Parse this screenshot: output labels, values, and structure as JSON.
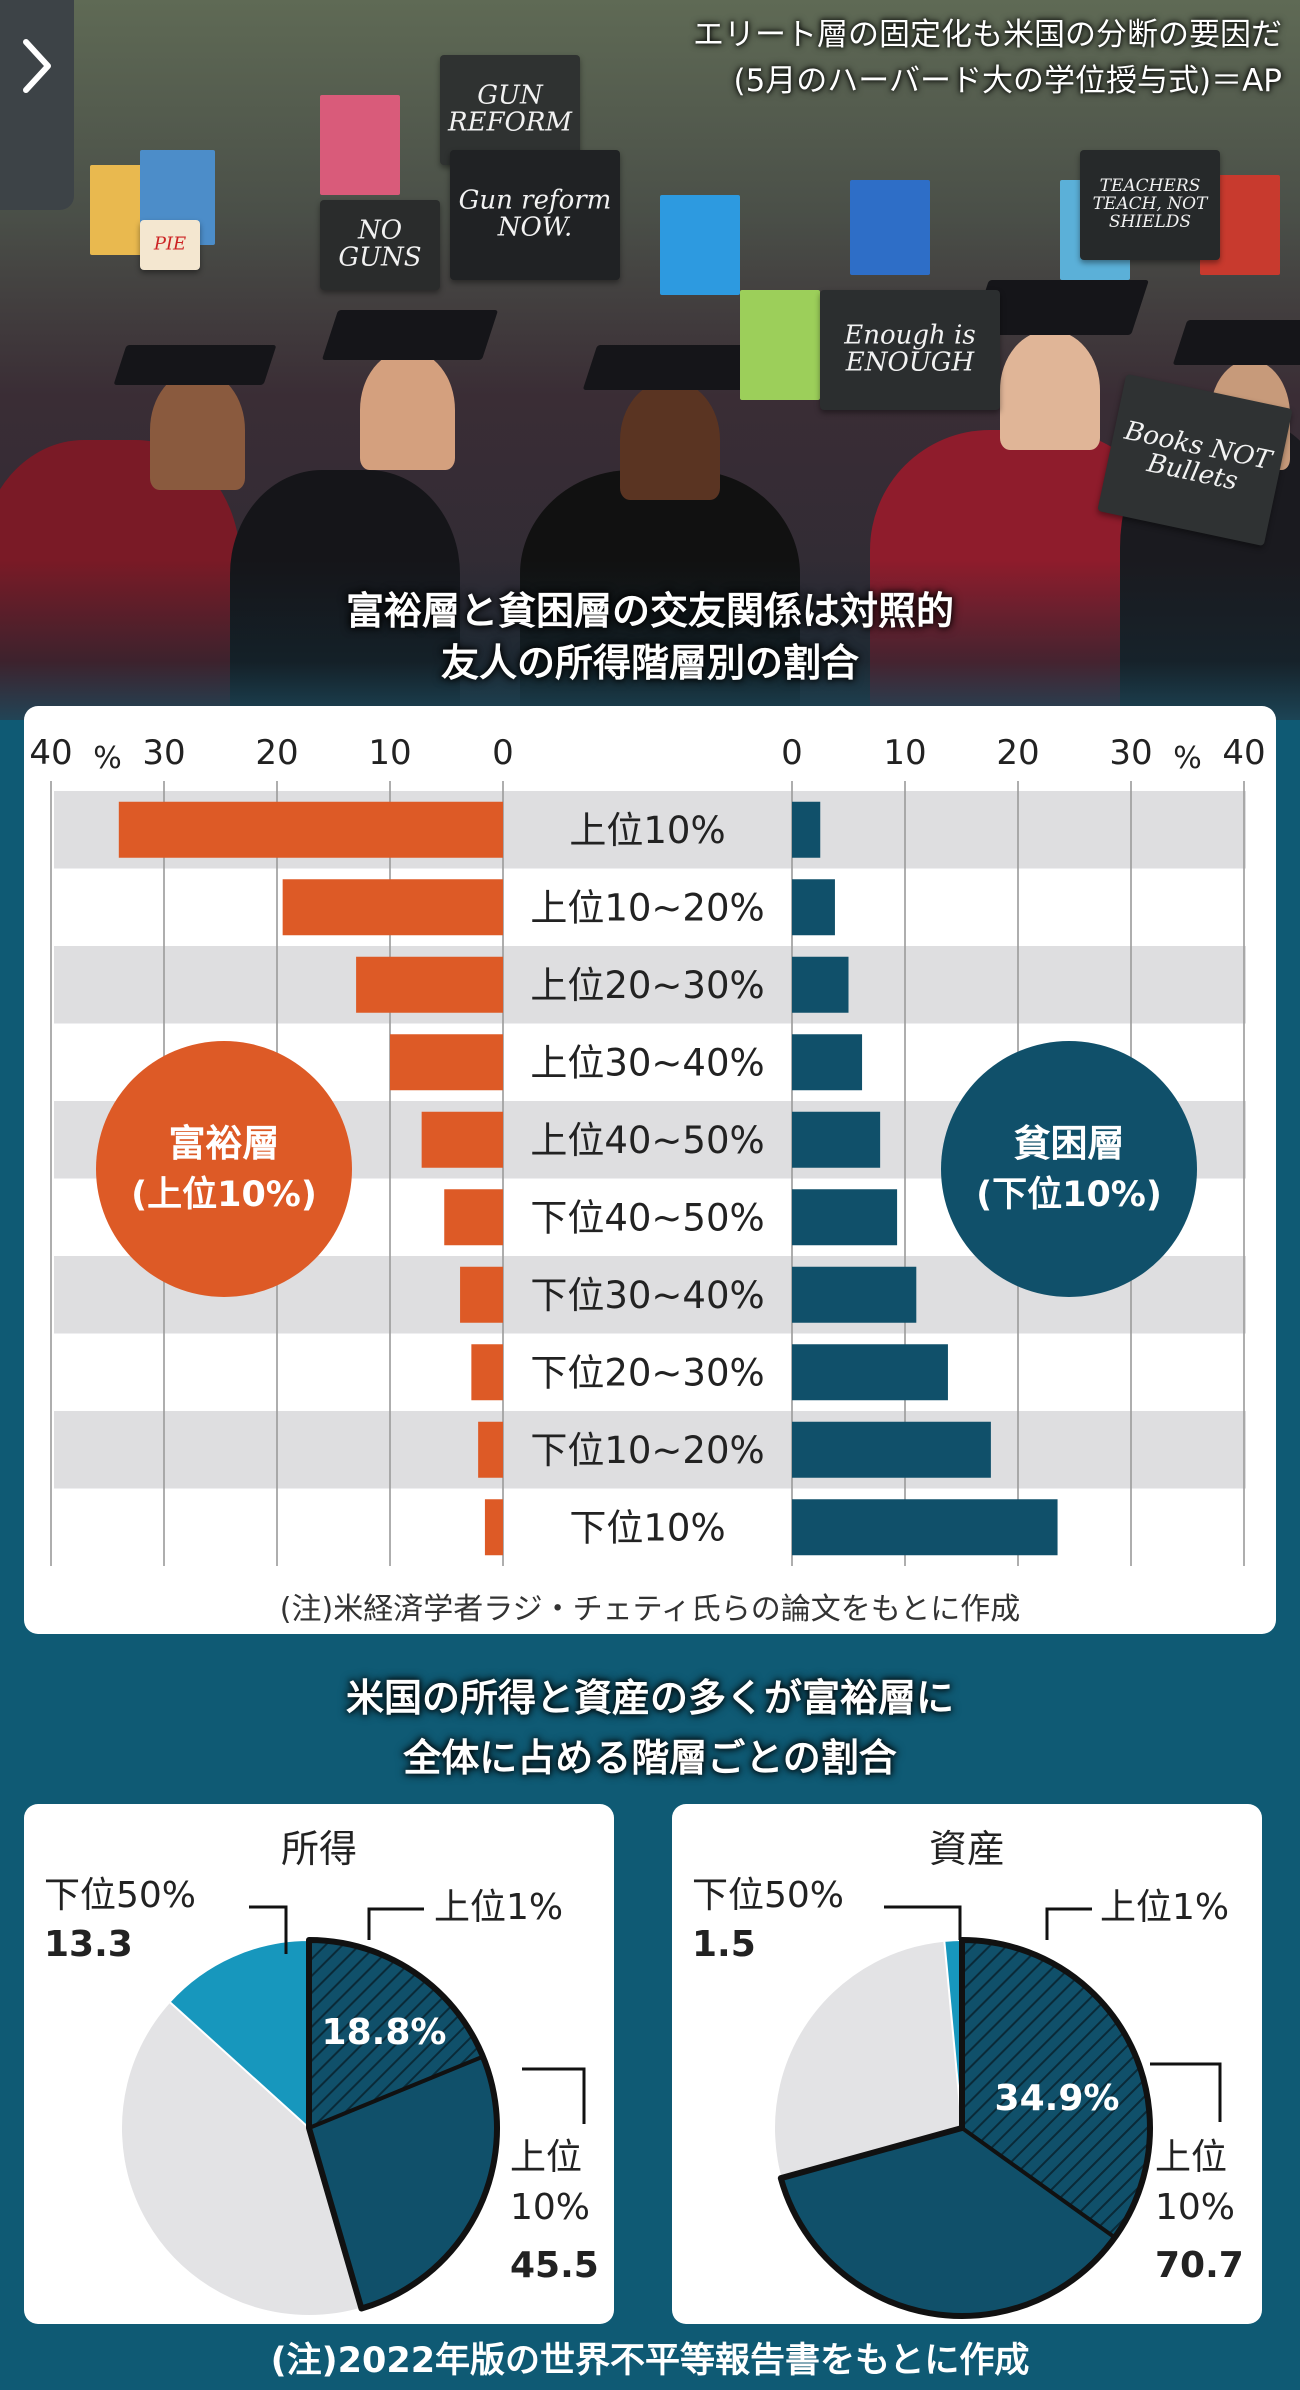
{
  "photo": {
    "caption_line1": "エリート層の固定化も米国の分断の要因だ",
    "caption_line2": "(5月のハーバード大の学位授与式)＝AP",
    "sign_texts": [
      "GUN REFORM",
      "Gun reform NOW.",
      "NO GUNS",
      "Enough is ENOUGH",
      "Books NOT Bullets",
      "TEACHERS TEACH, NOT SHIELDS",
      "PIE"
    ]
  },
  "next_button": {
    "icon": "chevron-right-icon"
  },
  "chart_data": [
    {
      "type": "bar",
      "title": "富裕層と貧困層の交友関係は対照的",
      "subtitle": "友人の所得階層別の割合",
      "categories": [
        "上位10%",
        "上位10~20%",
        "上位20~30%",
        "上位30~40%",
        "上位40~50%",
        "下位40~50%",
        "下位30~40%",
        "下位20~30%",
        "下位10~20%",
        "下位10%"
      ],
      "series": [
        {
          "name": "富裕層\n(上位10%)",
          "label_line1": "富裕層",
          "label_line2": "(上位10%)",
          "color": "#dd5a26",
          "values": [
            34,
            19.5,
            13,
            10,
            7.2,
            5.2,
            3.8,
            2.8,
            2.2,
            1.6
          ]
        },
        {
          "name": "貧困層\n(下位10%)",
          "label_line1": "貧困層",
          "label_line2": "(下位10%)",
          "color": "#10506a",
          "values": [
            2.5,
            3.8,
            5,
            6.2,
            7.8,
            9.3,
            11,
            13.8,
            17.6,
            23.5
          ]
        }
      ],
      "xlim": [
        0,
        40
      ],
      "left_ticks": [
        "40",
        "30",
        "20",
        "10",
        "0"
      ],
      "right_ticks": [
        "0",
        "10",
        "20",
        "30",
        "40"
      ],
      "unit": "%",
      "grid": true,
      "note": "(注)米経済学者ラジ・チェティ氏らの論文をもとに作成"
    },
    {
      "type": "pie",
      "title": "米国の所得と資産の多くが富裕層に",
      "subtitle": "全体に占める階層ごとの割合",
      "panel_title": "所得",
      "slices": [
        {
          "label": "上位1%",
          "value": 18.8,
          "display": "18.8%",
          "color": "#10506a",
          "hatched": true
        },
        {
          "label": "上位10%",
          "value": 45.5,
          "display": "45.5",
          "color": "#10506a",
          "hatched": false
        },
        {
          "label": "",
          "value": 40.9,
          "color": "#e3e3e5"
        },
        {
          "label": "下位50%",
          "value": 13.3,
          "display": "13.3",
          "color": "#1797bd"
        }
      ],
      "label_top1": "上位1%",
      "label_top10_line1": "上位",
      "label_top10_line2": "10%",
      "label_bottom50": "下位50%"
    },
    {
      "type": "pie",
      "panel_title": "資産",
      "slices": [
        {
          "label": "上位1%",
          "value": 34.9,
          "display": "34.9%",
          "color": "#10506a",
          "hatched": true
        },
        {
          "label": "上位10%",
          "value": 70.7,
          "display": "70.7",
          "color": "#10506a",
          "hatched": false
        },
        {
          "label": "",
          "value": 27.8,
          "color": "#e3e3e5"
        },
        {
          "label": "下位50%",
          "value": 1.5,
          "display": "1.5",
          "color": "#1797bd"
        }
      ],
      "label_top1": "上位1%",
      "label_top10_line1": "上位",
      "label_top10_line2": "10%",
      "label_bottom50": "下位50%",
      "note": "(注)2022年版の世界不平等報告書をもとに作成"
    }
  ]
}
